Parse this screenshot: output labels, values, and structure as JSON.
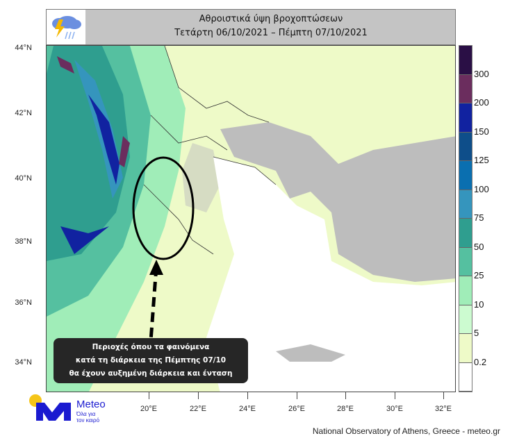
{
  "header": {
    "title": "Αθροιστικά ύψη βροχοπτώσεων",
    "subtitle": "Τετάρτη 06/10/2021 – Πέμπτη 07/10/2021",
    "icon": "storm-cloud-icon"
  },
  "map": {
    "lat_labels": [
      "44°N",
      "42°N",
      "40°N",
      "38°N",
      "36°N",
      "34°N"
    ],
    "lon_labels": [
      "20°E",
      "22°E",
      "24°E",
      "26°E",
      "28°E",
      "30°E",
      "32°E"
    ],
    "highlight": "ellipse over western Greece / Ionian Sea with dashed arrow",
    "colors": {
      "land_no_rain": "#bdbdbd",
      "sea_no_rain": "#ffffff"
    }
  },
  "colorbar": {
    "labels": [
      "300",
      "200",
      "150",
      "125",
      "100",
      "75",
      "50",
      "25",
      "10",
      "5",
      "0.2"
    ],
    "colors": [
      "#2a0f45",
      "#6b2d5e",
      "#1122a0",
      "#0e4e8a",
      "#0a6fb0",
      "#3595bd",
      "#2f9e8f",
      "#55c0a0",
      "#a0edb8",
      "#ccfbd0",
      "#eefac8",
      "#ffffff"
    ]
  },
  "callout": {
    "lines": [
      "Περιοχές όπου τα φαινόμενα",
      "κατά τη διάρκεια της Πέμπτης 07/10",
      "θα έχουν αυξημένη διάρκεια και ένταση"
    ]
  },
  "logo": {
    "name": "Meteo",
    "tagline1": "Όλα για",
    "tagline2": "τον καιρό",
    "brand_color": "#1a1ad0",
    "sun_color": "#f5c518"
  },
  "credit": "National Observatory of Athens, Greece - meteo.gr"
}
